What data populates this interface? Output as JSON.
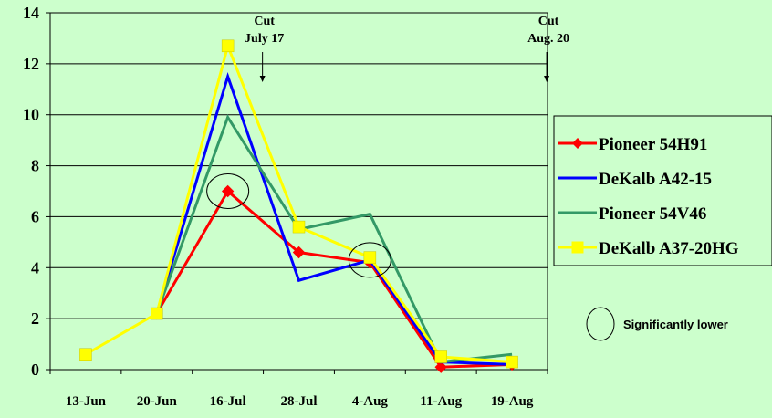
{
  "chart_data": {
    "type": "line",
    "categories": [
      "13-Jun",
      "20-Jun",
      "16-Jul",
      "28-Jul",
      "4-Aug",
      "11-Aug",
      "19-Aug"
    ],
    "ylim": [
      0,
      14
    ],
    "yticks": [
      0,
      2,
      4,
      6,
      8,
      10,
      12,
      14
    ],
    "grid": true,
    "legend_position": "right",
    "series": [
      {
        "name": "Pioneer 54H91",
        "color": "#ff0000",
        "marker": "diamond",
        "values": [
          null,
          2.2,
          7.0,
          4.6,
          4.2,
          0.1,
          0.2
        ]
      },
      {
        "name": "DeKalb A42-15",
        "color": "#0000ff",
        "marker": "none",
        "values": [
          null,
          2.2,
          11.5,
          3.5,
          4.3,
          0.3,
          0.2
        ]
      },
      {
        "name": "Pioneer 54V46",
        "color": "#339966",
        "marker": "none",
        "values": [
          null,
          2.2,
          9.9,
          5.5,
          6.1,
          0.3,
          0.6
        ]
      },
      {
        "name": "DeKalb A37-20HG",
        "color": "#ffff00",
        "marker": "square",
        "values": [
          0.6,
          2.2,
          12.7,
          5.6,
          4.4,
          0.5,
          0.3
        ]
      }
    ],
    "annotations": [
      {
        "lines": [
          "Cut",
          "July 17"
        ],
        "anchor_category": 2,
        "arrow": true
      },
      {
        "lines": [
          "Cut",
          "Aug. 20"
        ],
        "anchor_category": 6,
        "arrow": true
      }
    ],
    "significance_markers": [
      {
        "category": 2,
        "value": 7.0
      },
      {
        "category": 4,
        "value": 4.3
      }
    ],
    "significance_legend": "Significantly lower"
  }
}
